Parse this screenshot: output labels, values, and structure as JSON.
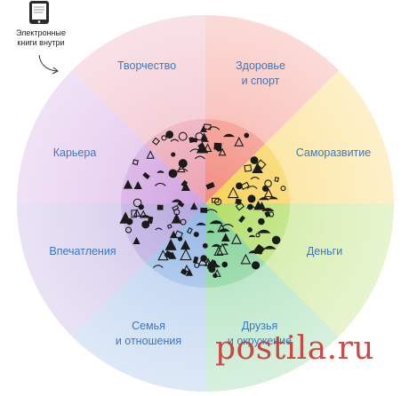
{
  "caption": {
    "line1": "Электронные",
    "line2": "книги внутри"
  },
  "segments": [
    {
      "key": "creativity",
      "line1": "Творчество",
      "line2": "",
      "color": "#f06d5f"
    },
    {
      "key": "health",
      "line1": "Здоровье",
      "line2": "и спорт",
      "color": "#f7c42a"
    },
    {
      "key": "selfdev",
      "line1": "Саморазвитие",
      "line2": "",
      "color": "#9fd53f"
    },
    {
      "key": "money",
      "line1": "Деньги",
      "line2": "",
      "color": "#5cc47a"
    },
    {
      "key": "friends",
      "line1": "Друзья",
      "line2": "и окружение",
      "color": "#78a6df"
    },
    {
      "key": "family",
      "line1": "Семья",
      "line2": "и отношения",
      "color": "#a490d6"
    },
    {
      "key": "impressions",
      "line1": "Впечатления",
      "line2": "",
      "color": "#c48bd8"
    },
    {
      "key": "career",
      "line1": "Карьера",
      "line2": "",
      "color": "#e68a9d"
    }
  ],
  "watermark": {
    "text": "postila.ru",
    "color": "#c93b36"
  },
  "colors": {
    "label": "#3b78c2"
  }
}
